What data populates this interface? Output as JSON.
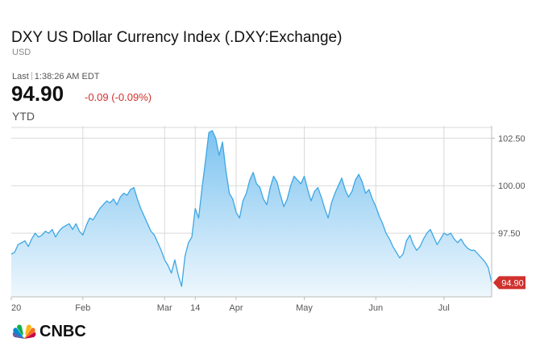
{
  "header": {
    "title": "DXY US Dollar Currency Index (.DXY:Exchange)",
    "currency": "USD",
    "last_label": "Last",
    "last_time": "1:38:26 AM EDT",
    "price": "94.90",
    "change": "-0.09 (-0.09%)",
    "period": "YTD"
  },
  "brand": {
    "name": "CNBC"
  },
  "colors": {
    "line": "#3ea7e4",
    "area_top": "#7cc3f0",
    "area_bottom": "#eef7fd",
    "negative": "#d0312d",
    "grid": "#d9d9d9"
  },
  "chart_data": {
    "type": "area",
    "title": "",
    "xlabel": "",
    "ylabel": "",
    "ylim": [
      94.15,
      103.15
    ],
    "y_ticks": [
      97.5,
      100.0,
      102.5
    ],
    "y_tick_labels": [
      "97.50",
      "100.00",
      "102.50"
    ],
    "x_ticks": [
      "20",
      "Feb",
      "Mar",
      "14",
      "Apr",
      "May",
      "Jun",
      "Jul"
    ],
    "last_value_label": "94.90",
    "y_axis_side": "right",
    "grid": true,
    "series": [
      {
        "values": [
          96.4,
          96.5,
          96.9,
          97.0,
          97.1,
          96.8,
          97.2,
          97.5,
          97.3,
          97.4,
          97.6,
          97.5,
          97.7,
          97.3,
          97.6,
          97.8,
          97.9,
          98.0,
          97.7,
          98.0,
          97.6,
          97.4,
          97.9,
          98.3,
          98.2,
          98.5,
          98.8,
          99.0,
          99.2,
          99.1,
          99.3,
          99.0,
          99.4,
          99.6,
          99.5,
          99.8,
          99.9,
          99.3,
          98.8,
          98.4,
          98.0,
          97.6,
          97.4,
          97.0,
          96.6,
          96.1,
          95.8,
          95.4,
          96.1,
          95.3,
          94.7,
          96.3,
          97.0,
          97.3,
          98.8,
          98.3,
          99.9,
          101.3,
          102.8,
          102.9,
          102.5,
          101.6,
          102.3,
          100.8,
          99.6,
          99.3,
          98.6,
          98.3,
          99.2,
          99.6,
          100.3,
          100.7,
          100.1,
          99.9,
          99.3,
          99.0,
          99.9,
          100.5,
          100.2,
          99.5,
          98.9,
          99.3,
          100.0,
          100.5,
          100.3,
          100.1,
          100.5,
          99.8,
          99.2,
          99.7,
          99.9,
          99.4,
          98.8,
          98.3,
          99.1,
          99.6,
          100.0,
          100.4,
          99.8,
          99.4,
          99.7,
          100.3,
          100.6,
          100.2,
          99.6,
          99.8,
          99.3,
          98.9,
          98.4,
          98.0,
          97.5,
          97.2,
          96.8,
          96.5,
          96.2,
          96.4,
          97.1,
          97.4,
          96.9,
          96.6,
          96.8,
          97.2,
          97.5,
          97.7,
          97.3,
          96.9,
          97.2,
          97.5,
          97.4,
          97.5,
          97.2,
          97.0,
          97.2,
          96.9,
          96.7,
          96.6,
          96.6,
          96.4,
          96.2,
          96.0,
          95.7,
          94.9
        ]
      }
    ]
  }
}
